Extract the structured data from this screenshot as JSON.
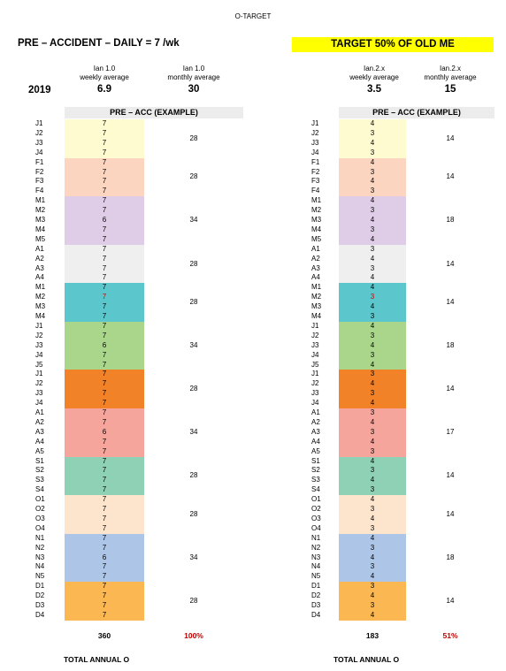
{
  "title": "O-TARGET",
  "left_heading": "PRE – ACCIDENT – DAILY = 7 /wk",
  "right_heading": "TARGET 50% OF OLD ME",
  "year": "2019",
  "left": {
    "weekly_label": "Ian 1.0\nweekly average",
    "monthly_label": "Ian 1.0\nmonthly average",
    "weekly_value": "6.9",
    "monthly_value": "30",
    "band": "PRE – ACC (EXAMPLE)",
    "total": "360",
    "pct": "100%",
    "footer": "TOTAL ANNUAL O"
  },
  "right": {
    "weekly_label": "Ian.2.x\nweekly average",
    "monthly_label": "Ian.2.x\nmonthly average",
    "weekly_value": "3.5",
    "monthly_value": "15",
    "band": "PRE – ACC (EXAMPLE)",
    "total": "183",
    "pct": "51%",
    "footer": "TOTAL ANNUAL O"
  },
  "months": [
    {
      "color": "#fffbd0",
      "left_total": "28",
      "right_total": "14",
      "rows": [
        {
          "w": "J1",
          "l": "7",
          "r": "4"
        },
        {
          "w": "J2",
          "l": "7",
          "r": "3"
        },
        {
          "w": "J3",
          "l": "7",
          "r": "4"
        },
        {
          "w": "J4",
          "l": "7",
          "r": "3"
        }
      ]
    },
    {
      "color": "#fcd5c1",
      "left_total": "28",
      "right_total": "14",
      "rows": [
        {
          "w": "F1",
          "l": "7",
          "r": "4"
        },
        {
          "w": "F2",
          "l": "7",
          "r": "3"
        },
        {
          "w": "F3",
          "l": "7",
          "r": "4"
        },
        {
          "w": "F4",
          "l": "7",
          "r": "3"
        }
      ]
    },
    {
      "color": "#dfcde7",
      "left_total": "34",
      "right_total": "18",
      "rows": [
        {
          "w": "M1",
          "l": "7",
          "r": "4"
        },
        {
          "w": "M2",
          "l": "7",
          "r": "3"
        },
        {
          "w": "M3",
          "l": "6",
          "r": "4"
        },
        {
          "w": "M4",
          "l": "7",
          "r": "3"
        },
        {
          "w": "M5",
          "l": "7",
          "r": "4"
        }
      ]
    },
    {
      "color": "#efefef",
      "left_total": "28",
      "right_total": "14",
      "rows": [
        {
          "w": "A1",
          "l": "7",
          "r": "3"
        },
        {
          "w": "A2",
          "l": "7",
          "r": "4"
        },
        {
          "w": "A3",
          "l": "7",
          "r": "3"
        },
        {
          "w": "A4",
          "l": "7",
          "r": "4"
        }
      ]
    },
    {
      "color": "#5bc6cb",
      "left_total": "28",
      "right_total": "14",
      "rows": [
        {
          "w": "M1",
          "l": "7",
          "r": "4"
        },
        {
          "w": "M2",
          "l": "7",
          "r": "3",
          "red": true
        },
        {
          "w": "M3",
          "l": "7",
          "r": "4"
        },
        {
          "w": "M4",
          "l": "7",
          "r": "3"
        }
      ]
    },
    {
      "color": "#a9d68a",
      "left_total": "34",
      "right_total": "18",
      "rows": [
        {
          "w": "J1",
          "l": "7",
          "r": "4"
        },
        {
          "w": "J2",
          "l": "7",
          "r": "3"
        },
        {
          "w": "J3",
          "l": "6",
          "r": "4"
        },
        {
          "w": "J4",
          "l": "7",
          "r": "3"
        },
        {
          "w": "J5",
          "l": "7",
          "r": "4"
        }
      ]
    },
    {
      "color": "#f28227",
      "left_total": "28",
      "right_total": "14",
      "rows": [
        {
          "w": "J1",
          "l": "7",
          "r": "3"
        },
        {
          "w": "J2",
          "l": "7",
          "r": "4"
        },
        {
          "w": "J3",
          "l": "7",
          "r": "3"
        },
        {
          "w": "J4",
          "l": "7",
          "r": "4"
        }
      ]
    },
    {
      "color": "#f6a59c",
      "left_total": "34",
      "right_total": "17",
      "rows": [
        {
          "w": "A1",
          "l": "7",
          "r": "3"
        },
        {
          "w": "A2",
          "l": "7",
          "r": "4"
        },
        {
          "w": "A3",
          "l": "6",
          "r": "3"
        },
        {
          "w": "A4",
          "l": "7",
          "r": "4"
        },
        {
          "w": "A5",
          "l": "7",
          "r": "3"
        }
      ]
    },
    {
      "color": "#8fd1b5",
      "left_total": "28",
      "right_total": "14",
      "rows": [
        {
          "w": "S1",
          "l": "7",
          "r": "4"
        },
        {
          "w": "S2",
          "l": "7",
          "r": "3"
        },
        {
          "w": "S3",
          "l": "7",
          "r": "4"
        },
        {
          "w": "S4",
          "l": "7",
          "r": "3"
        }
      ]
    },
    {
      "color": "#fde4cc",
      "left_total": "28",
      "right_total": "14",
      "rows": [
        {
          "w": "O1",
          "l": "7",
          "r": "4"
        },
        {
          "w": "O2",
          "l": "7",
          "r": "3"
        },
        {
          "w": "O3",
          "l": "7",
          "r": "4"
        },
        {
          "w": "O4",
          "l": "7",
          "r": "3"
        }
      ]
    },
    {
      "color": "#adc5e6",
      "left_total": "34",
      "right_total": "18",
      "rows": [
        {
          "w": "N1",
          "l": "7",
          "r": "4"
        },
        {
          "w": "N2",
          "l": "7",
          "r": "3"
        },
        {
          "w": "N3",
          "l": "6",
          "r": "4"
        },
        {
          "w": "N4",
          "l": "7",
          "r": "3"
        },
        {
          "w": "N5",
          "l": "7",
          "r": "4"
        }
      ]
    },
    {
      "color": "#fbb751",
      "left_total": "28",
      "right_total": "14",
      "rows": [
        {
          "w": "D1",
          "l": "7",
          "r": "3"
        },
        {
          "w": "D2",
          "l": "7",
          "r": "4"
        },
        {
          "w": "D3",
          "l": "7",
          "r": "3"
        },
        {
          "w": "D4",
          "l": "7",
          "r": "4"
        }
      ]
    }
  ]
}
